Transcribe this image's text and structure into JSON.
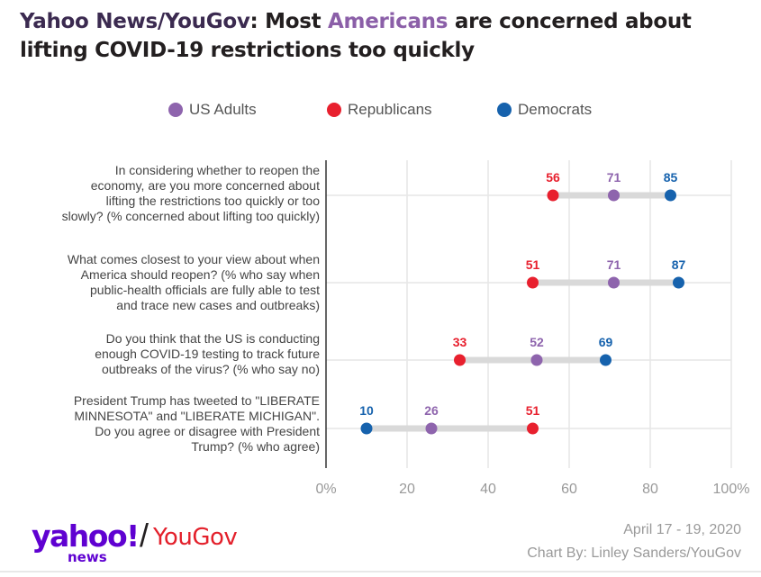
{
  "title": {
    "source": "Yahoo News/YouGov",
    "before": ": Most ",
    "highlight": "Americans",
    "after": " are concerned about lifting COVID-19 restrictions too quickly"
  },
  "colors": {
    "us_adults": "#8e64ad",
    "republicans": "#e8202e",
    "democrats": "#1662ad",
    "connector": "#d9d9d9",
    "gridline": "#e6e6e6",
    "axis": "#333333",
    "tick_text": "#999999"
  },
  "chart_data": {
    "type": "dot-range",
    "categories": [
      "In considering whether to reopen the economy, are you more concerned about lifting the restrictions too quickly or too slowly? (% concerned about lifting too quickly)",
      "What comes closest to your view about when America should reopen? (% who say when public-health officials are fully able to test and trace new cases and outbreaks)",
      "Do you think that the US is conducting enough COVID-19 testing to track future outbreaks of the virus? (% who say no)",
      "President Trump has tweeted to  \"LIBERATE MINNESOTA\" and \"LIBERATE MICHIGAN\". Do you agree or disagree with President Trump? (% who agree)"
    ],
    "series": [
      {
        "name": "US Adults",
        "values": [
          71,
          71,
          52,
          26
        ]
      },
      {
        "name": "Republicans",
        "values": [
          56,
          51,
          33,
          51
        ]
      },
      {
        "name": "Democrats",
        "values": [
          85,
          87,
          69,
          10
        ]
      }
    ],
    "xlim": [
      0,
      100
    ],
    "xticks": [
      0,
      20,
      40,
      60,
      80,
      100
    ],
    "xtick_labels": [
      "0%",
      "20",
      "40",
      "60",
      "80",
      "100%"
    ],
    "grid": true,
    "legend_position": "top"
  },
  "question_lines": [
    [
      "In considering whether to reopen the",
      "economy, are you more concerned about",
      "lifting the restrictions too quickly or too",
      "slowly? (% concerned about lifting too quickly)"
    ],
    [
      "What comes closest to your view about when",
      "America should reopen? (% who say when",
      "public-health officials are fully able to test",
      "and trace new cases and outbreaks)"
    ],
    [
      "Do you think that the US is conducting",
      "enough COVID-19 testing to track future",
      "outbreaks of the virus? (% who say no)"
    ],
    [
      "President Trump has tweeted to  \"LIBERATE",
      "MINNESOTA\" and \"LIBERATE MICHIGAN\".",
      "Do you agree or disagree with President",
      "Trump? (% who agree)"
    ]
  ],
  "footer": {
    "brand_yahoo": "yahoo!",
    "brand_news": "news",
    "brand_slash": "/",
    "brand_yougov": "YouGov",
    "date": "April 17 - 19, 2020",
    "credit": "Chart By: Linley Sanders/YouGov"
  }
}
